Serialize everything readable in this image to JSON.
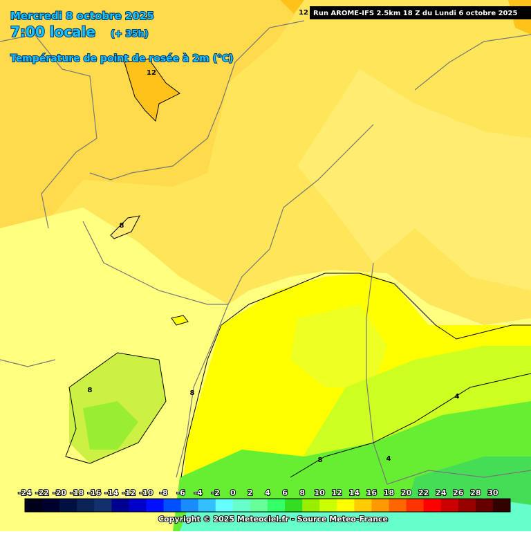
{
  "header": {
    "date": "Mercredi 8 octobre 2025",
    "time": "7:00 locale",
    "lead": "(+ 35h)",
    "parameter": "Température de point de rosée à 2m (°C)",
    "run": "Run AROME-IFS 2.5km 18 Z du Lundi 6 octobre 2025"
  },
  "contour_labels": [
    12,
    12,
    8,
    8,
    8,
    4,
    8,
    4
  ],
  "legend": {
    "values": [
      -24,
      -22,
      -20,
      -18,
      -16,
      -14,
      -12,
      -10,
      -8,
      -6,
      -4,
      -2,
      0,
      2,
      4,
      6,
      8,
      10,
      12,
      14,
      16,
      18,
      20,
      22,
      24,
      26,
      28,
      30
    ],
    "colors": [
      "#000018",
      "#00002e",
      "#001040",
      "#0a2255",
      "#13306c",
      "#000090",
      "#0000c8",
      "#0010ff",
      "#0050ff",
      "#1a8cff",
      "#33c0ff",
      "#66ffff",
      "#66ffcc",
      "#66ff99",
      "#33ff66",
      "#33dd22",
      "#99ee00",
      "#ccff00",
      "#ffff00",
      "#ffcc00",
      "#ff9900",
      "#ff6600",
      "#ff3300",
      "#ff0000",
      "#cc0000",
      "#990000",
      "#660000",
      "#330000"
    ]
  },
  "footer": {
    "copyright": "Copyright © 2025 Meteociel.fr - Source Meteo-France"
  }
}
